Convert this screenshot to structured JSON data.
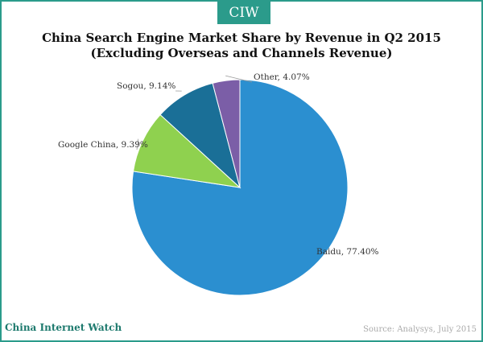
{
  "header": {
    "badge_text": "CIW"
  },
  "footer": {
    "brand": "China Internet Watch",
    "source": "Source: Analysys, July 2015"
  },
  "chart_data": {
    "type": "pie",
    "title": "China Search Engine Market Share by Revenue in Q2 2015",
    "subtitle": "(Excluding  Overseas and Channels Revenue)",
    "slices": [
      {
        "name": "Baidu",
        "value": 77.4,
        "label": "Baidu,  77.40%",
        "color": "#2b8fd0"
      },
      {
        "name": "Google China",
        "value": 9.39,
        "label": "Google  China,  9.39%",
        "color": "#8fd14f"
      },
      {
        "name": "Sogou",
        "value": 9.14,
        "label": "Sogou,  9.14%",
        "color": "#1a6f97"
      },
      {
        "name": "Other",
        "value": 4.07,
        "label": "Other,  4.07%",
        "color": "#7b5ea7"
      }
    ],
    "start_angle": "12 o'clock",
    "direction": "clockwise",
    "legend": "none"
  }
}
